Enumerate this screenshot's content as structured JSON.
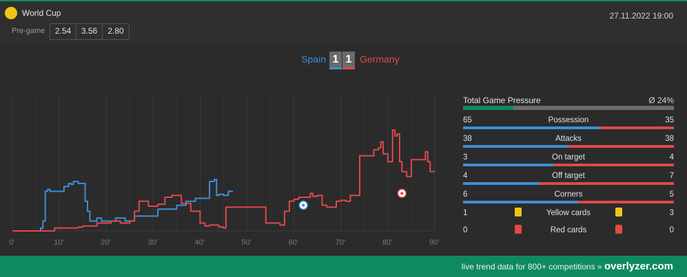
{
  "header": {
    "competition": "World Cup",
    "datetime": "27.11.2022 19:00",
    "pregame_label": "Pre-game",
    "odds": [
      "2.54",
      "3.56",
      "2.80"
    ],
    "icon_color": "#f2c515"
  },
  "match": {
    "home": "Spain",
    "away": "Germany",
    "home_score": "1",
    "away_score": "1",
    "home_color": "#3d8fd6",
    "away_color": "#e04848"
  },
  "chart_data": {
    "type": "line",
    "title": "",
    "xlabel": "",
    "ylabel": "",
    "xlim": [
      0,
      90
    ],
    "ylim": [
      0,
      100
    ],
    "x_ticks": [
      "0'",
      "10'",
      "20'",
      "30'",
      "40'",
      "50'",
      "60'",
      "70'",
      "80'",
      "90'"
    ],
    "series": [
      {
        "team": "home",
        "color": "#3d8fd6",
        "points": [
          [
            0,
            0
          ],
          [
            5,
            0
          ],
          [
            6,
            3
          ],
          [
            6.5,
            10
          ],
          [
            7,
            40
          ],
          [
            7.5,
            42
          ],
          [
            8,
            40
          ],
          [
            10,
            40
          ],
          [
            11,
            45
          ],
          [
            12,
            48
          ],
          [
            12.5,
            47
          ],
          [
            13,
            50
          ],
          [
            14,
            48
          ],
          [
            15,
            48
          ],
          [
            15.5,
            30
          ],
          [
            16,
            20
          ],
          [
            16.5,
            10
          ],
          [
            17,
            10
          ],
          [
            18,
            13
          ],
          [
            19,
            10
          ],
          [
            20,
            10
          ],
          [
            21,
            10
          ],
          [
            22,
            13
          ],
          [
            23,
            13
          ],
          [
            24,
            10
          ],
          [
            25,
            10
          ],
          [
            26,
            15
          ],
          [
            27,
            15
          ],
          [
            29,
            15
          ],
          [
            30,
            15
          ],
          [
            31,
            22
          ],
          [
            33,
            22
          ],
          [
            35,
            26
          ],
          [
            36,
            26
          ],
          [
            37,
            30
          ],
          [
            38,
            30
          ],
          [
            39,
            33
          ],
          [
            40,
            33
          ],
          [
            41,
            33
          ],
          [
            42,
            50
          ],
          [
            43,
            52
          ],
          [
            43.5,
            36
          ],
          [
            44,
            37
          ],
          [
            45,
            36
          ],
          [
            46,
            40
          ],
          [
            47,
            40
          ]
        ]
      },
      {
        "team": "away",
        "color": "#e04848",
        "points": [
          [
            0,
            0
          ],
          [
            5,
            0
          ],
          [
            6,
            0
          ],
          [
            9,
            3
          ],
          [
            12,
            3
          ],
          [
            14,
            4
          ],
          [
            15,
            5
          ],
          [
            16,
            5
          ],
          [
            17,
            5
          ],
          [
            18,
            8
          ],
          [
            19,
            8
          ],
          [
            20,
            8
          ],
          [
            21,
            10
          ],
          [
            22,
            10
          ],
          [
            23,
            8
          ],
          [
            24,
            8
          ],
          [
            25,
            10
          ],
          [
            26,
            20
          ],
          [
            27,
            30
          ],
          [
            28,
            30
          ],
          [
            29,
            25
          ],
          [
            30,
            25
          ],
          [
            31,
            27
          ],
          [
            32,
            27
          ],
          [
            32.5,
            34
          ],
          [
            33,
            34
          ],
          [
            34,
            36
          ],
          [
            35,
            36
          ],
          [
            36,
            28
          ],
          [
            37,
            28
          ],
          [
            38,
            20
          ],
          [
            39,
            20
          ],
          [
            40,
            8
          ],
          [
            41,
            5
          ],
          [
            42,
            6
          ],
          [
            43,
            6
          ],
          [
            44,
            4
          ],
          [
            45,
            3
          ],
          [
            45.5,
            24
          ],
          [
            46,
            24
          ],
          [
            47,
            24
          ],
          [
            52,
            24
          ],
          [
            53,
            24
          ],
          [
            54,
            8
          ],
          [
            55,
            8
          ],
          [
            56,
            8
          ],
          [
            57,
            6
          ],
          [
            58,
            20
          ],
          [
            59,
            30
          ],
          [
            60,
            32
          ],
          [
            61,
            34
          ],
          [
            62,
            34
          ],
          [
            63,
            34
          ],
          [
            63.5,
            38
          ],
          [
            64,
            35
          ],
          [
            65,
            36
          ],
          [
            66,
            26
          ],
          [
            67,
            24
          ],
          [
            68,
            24
          ],
          [
            69,
            30
          ],
          [
            70,
            31
          ],
          [
            71,
            30
          ],
          [
            72,
            36
          ],
          [
            73,
            36
          ],
          [
            74,
            76
          ],
          [
            76,
            76
          ],
          [
            77,
            82
          ],
          [
            78,
            84
          ],
          [
            78.5,
            90
          ],
          [
            79,
            78
          ],
          [
            80,
            70
          ],
          [
            81,
            102
          ],
          [
            81.5,
            96
          ],
          [
            82,
            98
          ],
          [
            82.5,
            70
          ],
          [
            83,
            60
          ],
          [
            84,
            55
          ],
          [
            85,
            72
          ],
          [
            86,
            72
          ],
          [
            88,
            80
          ],
          [
            88.5,
            70
          ],
          [
            89,
            60
          ],
          [
            90,
            60
          ]
        ]
      }
    ],
    "goal_markers": [
      {
        "team": "home",
        "minute": 62,
        "value": 26
      },
      {
        "team": "away",
        "minute": 83,
        "value": 38
      }
    ]
  },
  "stats": {
    "pressure_label": "Total Game Pressure",
    "pressure_value": "Ø 24%",
    "pressure_fraction": 0.24,
    "rows": [
      {
        "label": "Possession",
        "home": "65",
        "away": "35"
      },
      {
        "label": "Attacks",
        "home": "38",
        "away": "38"
      },
      {
        "label": "On target",
        "home": "3",
        "away": "4"
      },
      {
        "label": "Off target",
        "home": "4",
        "away": "7"
      },
      {
        "label": "Corners",
        "home": "6",
        "away": "5"
      }
    ],
    "cards": [
      {
        "label": "Yellow cards",
        "home": "1",
        "away": "3",
        "color": "#f2c515"
      },
      {
        "label": "Red cards",
        "home": "0",
        "away": "0",
        "color": "#e04848"
      }
    ]
  },
  "footer": {
    "text": "live trend data for 800+ competitions »",
    "brand": "overlyzer.com"
  }
}
